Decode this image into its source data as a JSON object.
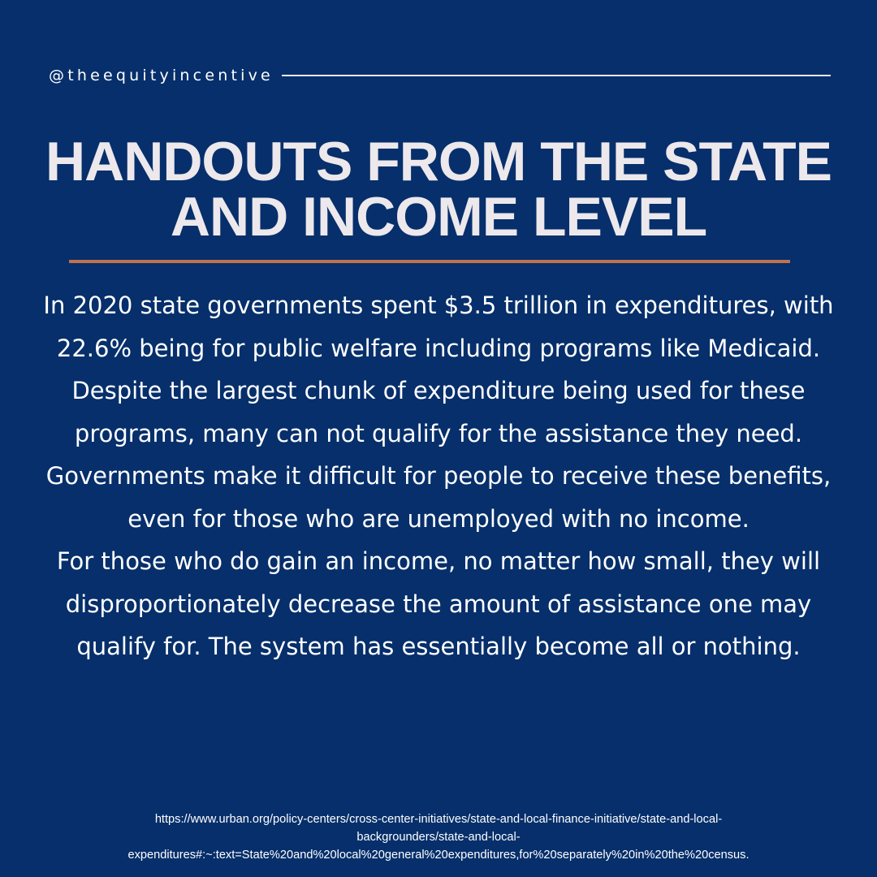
{
  "header": {
    "handle": "@theequityincentive"
  },
  "title": {
    "line1": "HANDOUTS FROM THE STATE",
    "line2": "AND INCOME LEVEL"
  },
  "body": {
    "paragraph1": "In 2020 state governments spent $3.5 trillion in expenditures, with 22.6% being for public welfare including programs like Medicaid.",
    "paragraph2": "Despite the largest chunk of expenditure being used for these programs, many can not qualify for the assistance they need. Governments make it difficult for people to receive these benefits, even for those who are unemployed with no income.",
    "paragraph3": "For those who do gain an income, no matter how small, they will disproportionately decrease the amount of assistance one may qualify for. The system has essentially become all or nothing."
  },
  "source": {
    "url_line1": "https://www.urban.org/policy-centers/cross-center-initiatives/state-and-local-finance-initiative/state-and-local-",
    "url_line2": "backgrounders/state-and-local-",
    "url_line3": "expenditures#:~:text=State%20and%20local%20general%20expenditures,for%20separately%20in%20the%20census."
  },
  "colors": {
    "background": "#062f6b",
    "title": "#ece8ec",
    "accent_rule": "#c0724e",
    "text": "#ffffff"
  }
}
